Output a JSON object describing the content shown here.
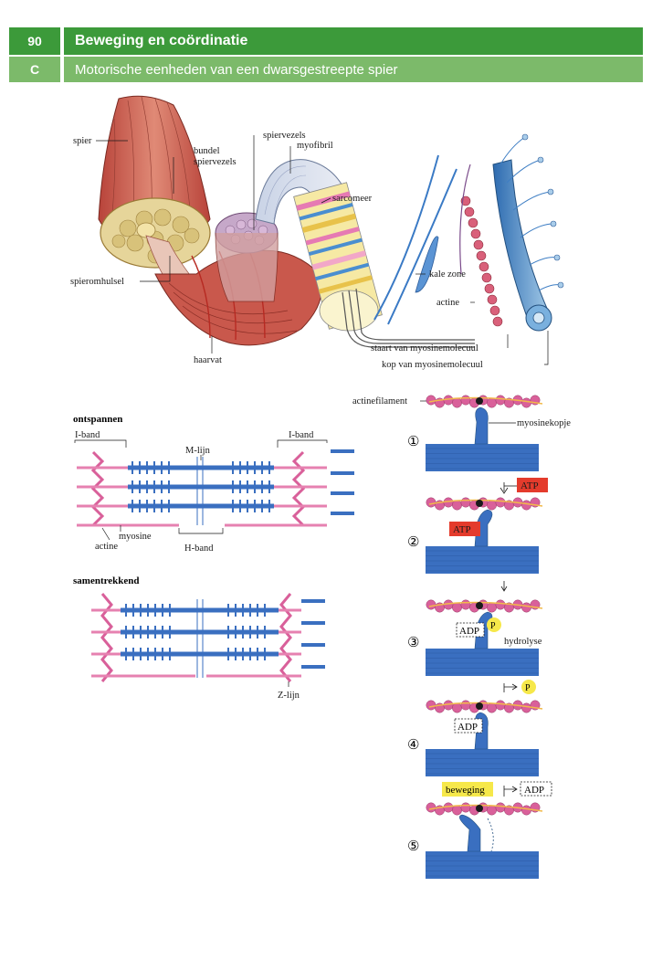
{
  "header": {
    "page_number": "90",
    "chapter_title": "Beweging en coördinatie",
    "section_letter": "C",
    "section_title": "Motorische eenheden van een dwarsgestreepte spier"
  },
  "anatomy": {
    "spier": "spier",
    "bundel_line1": "bundel",
    "bundel_line2": "spiervezels",
    "spiervezels": "spiervezels",
    "myofibril": "myofibril",
    "sarcomeer": "sarcomeer",
    "spieromhulsel": "spieromhulsel",
    "haarvat": "haarvat",
    "kale_zone": "kale zone",
    "actine": "actine",
    "staart": "staart van myosinemolecuul",
    "kop": "kop van myosinemolecuul"
  },
  "sarcomere": {
    "relaxed_title": "ontspannen",
    "iband_left": "I-band",
    "iband_right": "I-band",
    "mlijn": "M-lijn",
    "myosine": "myosine",
    "actine": "actine",
    "hband": "H-band",
    "contracted_title": "samentrekkend",
    "zlijn": "Z-lijn"
  },
  "cycle": {
    "actinefilament": "actinefilament",
    "myosinekopje": "myosinekopje",
    "steps": [
      "①",
      "②",
      "③",
      "④",
      "⑤"
    ],
    "atp": "ATP",
    "adp": "ADP",
    "p": "P",
    "hydrolyse": "hydrolyse",
    "beweging": "beweging"
  },
  "colors": {
    "header_dark": "#3c9a3a",
    "header_light": "#7cba6a",
    "actin": "#d9609a",
    "myosin": "#3a6fc0",
    "atp": "#e43b2c",
    "highlight": "#f6e84a"
  }
}
